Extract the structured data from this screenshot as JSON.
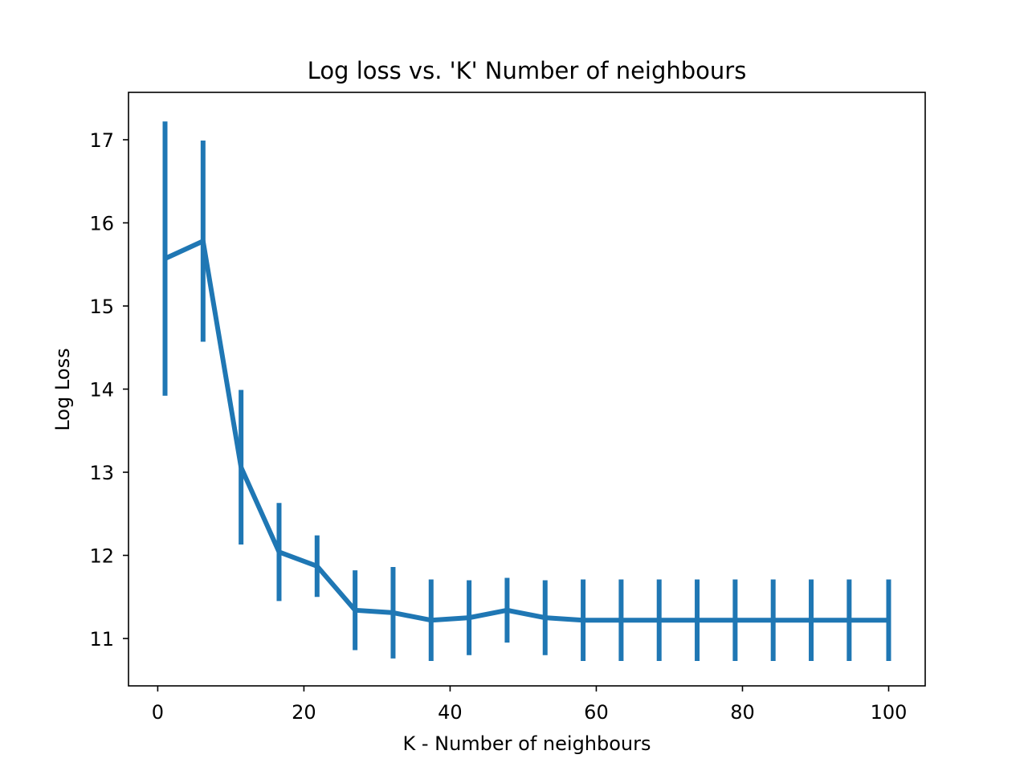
{
  "chart_data": {
    "type": "line",
    "title": "Log loss vs. 'K' Number of neighbours",
    "xlabel": "K - Number of neighbours",
    "ylabel": "Log Loss",
    "xlim": [
      -4,
      105
    ],
    "ylim": [
      10.43,
      17.57
    ],
    "xticks": [
      0,
      20,
      40,
      60,
      80,
      100
    ],
    "yticks": [
      11,
      12,
      13,
      14,
      15,
      16,
      17
    ],
    "grid": false,
    "series": [
      {
        "color": "#1f77b4",
        "x": [
          1,
          6.2,
          11.4,
          16.6,
          21.8,
          27,
          32.2,
          37.4,
          42.6,
          47.8,
          53,
          58.2,
          63.4,
          68.6,
          73.8,
          79,
          84.2,
          89.4,
          94.6,
          100
        ],
        "y": [
          15.57,
          15.78,
          13.06,
          12.04,
          11.87,
          11.34,
          11.31,
          11.22,
          11.25,
          11.34,
          11.25,
          11.22,
          11.22,
          11.22,
          11.22,
          11.22,
          11.22,
          11.22,
          11.22,
          11.22
        ],
        "yerr": [
          1.65,
          1.21,
          0.93,
          0.59,
          0.37,
          0.48,
          0.55,
          0.49,
          0.45,
          0.39,
          0.45,
          0.49,
          0.49,
          0.49,
          0.49,
          0.49,
          0.49,
          0.49,
          0.49,
          0.49
        ]
      }
    ]
  }
}
